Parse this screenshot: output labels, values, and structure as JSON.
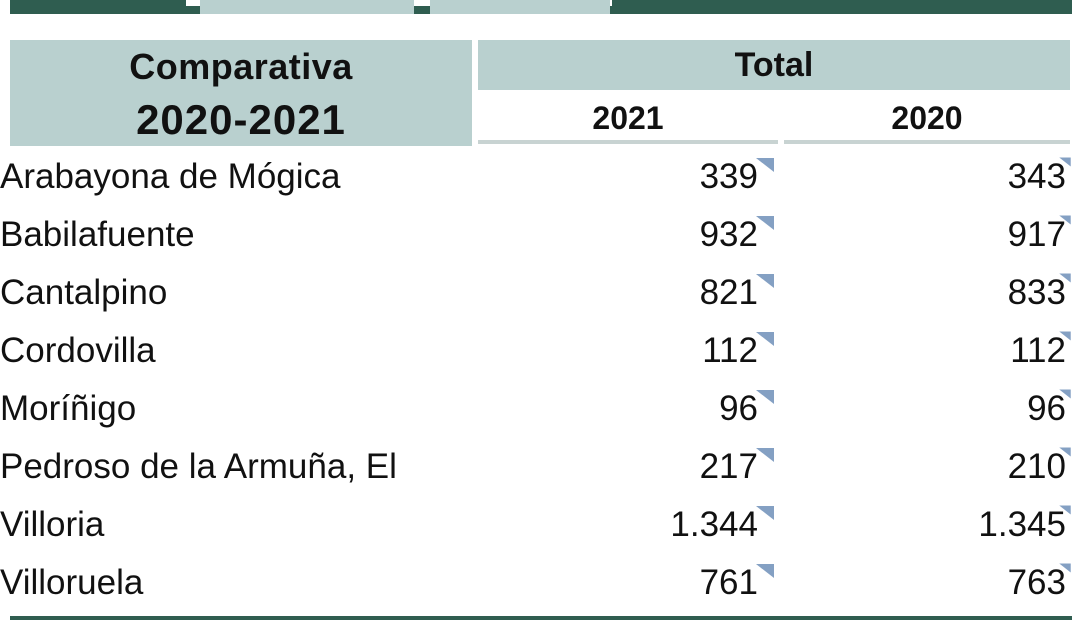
{
  "header": {
    "left_line1": "Comparativa",
    "left_line2": "2020-2021",
    "total_label": "Total",
    "col_2021": "2021",
    "col_2020": "2020"
  },
  "rows": [
    {
      "name": "Arabayona de Mógica",
      "v2021": "339",
      "v2020": "343"
    },
    {
      "name": "Babilafuente",
      "v2021": "932",
      "v2020": "917"
    },
    {
      "name": "Cantalpino",
      "v2021": "821",
      "v2020": "833"
    },
    {
      "name": "Cordovilla",
      "v2021": "112",
      "v2020": "112"
    },
    {
      "name": "Moríñigo",
      "v2021": "96",
      "v2020": "96"
    },
    {
      "name": "Pedroso de la Armuña, El",
      "v2021": "217",
      "v2020": "210"
    },
    {
      "name": "Villoria",
      "v2021": "1.344",
      "v2020": "1.345"
    },
    {
      "name": "Villoruela",
      "v2021": "761",
      "v2020": "763"
    }
  ],
  "colors": {
    "header_bg": "#b9d0cf",
    "accent_dark": "#2f5d50",
    "marker": "#6f8fb8"
  },
  "icons": {
    "cell_marker": "triangle-marker-icon"
  }
}
